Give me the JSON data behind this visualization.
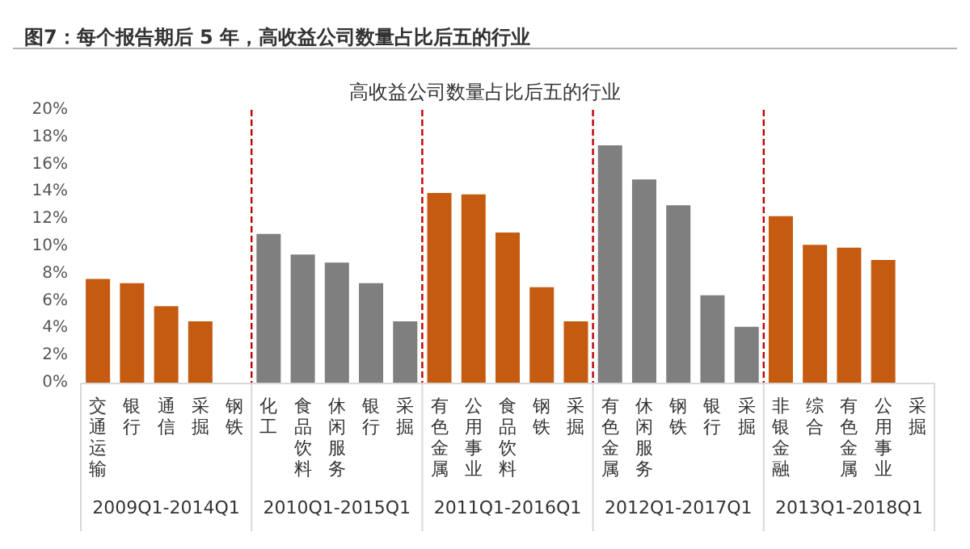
{
  "chart_data": {
    "type": "bar",
    "title": "图7：每个报告期后 5 年，高收益公司数量占比后五的行业",
    "subtitle": "高收益公司数量占比后五的行业",
    "categories": [
      "交通运输",
      "银行",
      "通信",
      "采掘",
      "钢铁",
      "化工",
      "食品饮料",
      "休闲服务",
      "银行",
      "采掘",
      "有色金属",
      "公用事业",
      "食品饮料",
      "钢铁",
      "采掘",
      "有色金属",
      "休闲服务",
      "钢铁",
      "银行",
      "采掘",
      "非银金融",
      "综合",
      "有色金属",
      "公用事业",
      "采掘"
    ],
    "series": [
      {
        "name": "2009Q1-2014Q1",
        "color": "#c55a11",
        "values": [
          7.6,
          7.3,
          5.6,
          4.5,
          0,
          null,
          null,
          null,
          null,
          null,
          null,
          null,
          null,
          null,
          null,
          null,
          null,
          null,
          null,
          null,
          null,
          null,
          null,
          null,
          null
        ]
      },
      {
        "name": "2010Q1-2015Q1",
        "color": "#7f7f7f",
        "values": [
          null,
          null,
          null,
          null,
          null,
          10.9,
          9.4,
          8.8,
          7.3,
          4.5,
          null,
          null,
          null,
          null,
          null,
          null,
          null,
          null,
          null,
          null,
          null,
          null,
          null,
          null,
          null
        ]
      },
      {
        "name": "2011Q1-2016Q1",
        "color": "#c55a11",
        "values": [
          null,
          null,
          null,
          null,
          null,
          null,
          null,
          null,
          null,
          null,
          13.9,
          13.8,
          11.0,
          7.0,
          4.5,
          null,
          null,
          null,
          null,
          null,
          null,
          null,
          null,
          null,
          null
        ]
      },
      {
        "name": "2012Q1-2017Q1",
        "color": "#7f7f7f",
        "values": [
          null,
          null,
          null,
          null,
          null,
          null,
          null,
          null,
          null,
          null,
          null,
          null,
          null,
          null,
          null,
          17.4,
          14.9,
          13.0,
          6.4,
          4.1,
          null,
          null,
          null,
          null,
          null
        ]
      },
      {
        "name": "2013Q1-2018Q1",
        "color": "#c55a11",
        "values": [
          null,
          null,
          null,
          null,
          null,
          null,
          null,
          null,
          null,
          null,
          null,
          null,
          null,
          null,
          null,
          null,
          null,
          null,
          null,
          null,
          12.2,
          10.1,
          9.9,
          9.0,
          0
        ]
      }
    ],
    "ylim": [
      0,
      20
    ],
    "yticks": [
      {
        "value": 0,
        "label": "0%"
      },
      {
        "value": 2,
        "label": "2%"
      },
      {
        "value": 4,
        "label": "4%"
      },
      {
        "value": 6,
        "label": "6%"
      },
      {
        "value": 8,
        "label": "8%"
      },
      {
        "value": 10,
        "label": "10%"
      },
      {
        "value": 12,
        "label": "12%"
      },
      {
        "value": 14,
        "label": "14%"
      },
      {
        "value": 16,
        "label": "16%"
      },
      {
        "value": 18,
        "label": "18%"
      },
      {
        "value": 20,
        "label": "20%"
      }
    ],
    "grid": false,
    "legend": false
  }
}
